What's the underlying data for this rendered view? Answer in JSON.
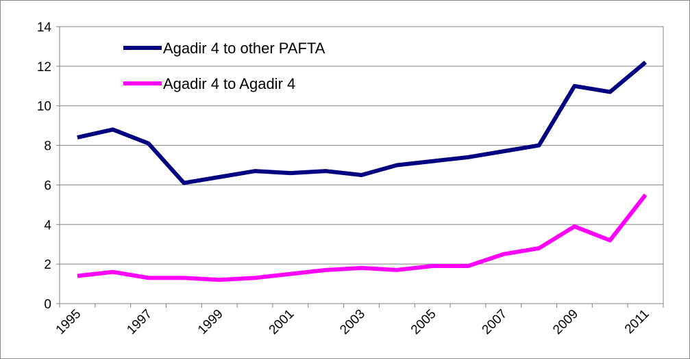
{
  "chart_data": {
    "type": "line",
    "categories": [
      "1995",
      null,
      "1997",
      null,
      "1999",
      null,
      "2001",
      null,
      "2003",
      null,
      "2005",
      null,
      "2007",
      null,
      "2009",
      null,
      "2011"
    ],
    "series": [
      {
        "name": "Agadir 4 to other PAFTA",
        "color": "#000080",
        "values": [
          8.4,
          8.8,
          8.1,
          6.1,
          6.4,
          6.7,
          6.6,
          6.7,
          6.5,
          7.0,
          7.2,
          7.4,
          7.7,
          8.0,
          11.0,
          10.7,
          12.2
        ]
      },
      {
        "name": "Agadir 4 to Agadir 4",
        "color": "#ff00ff",
        "values": [
          1.4,
          1.6,
          1.3,
          1.3,
          1.2,
          1.3,
          1.5,
          1.7,
          1.8,
          1.7,
          1.9,
          1.9,
          2.5,
          2.8,
          3.9,
          3.2,
          5.5
        ]
      }
    ],
    "ylim": [
      0,
      14
    ],
    "yticks": [
      0,
      2,
      4,
      6,
      8,
      10,
      12,
      14
    ],
    "grid": true,
    "legend": "top-left"
  }
}
